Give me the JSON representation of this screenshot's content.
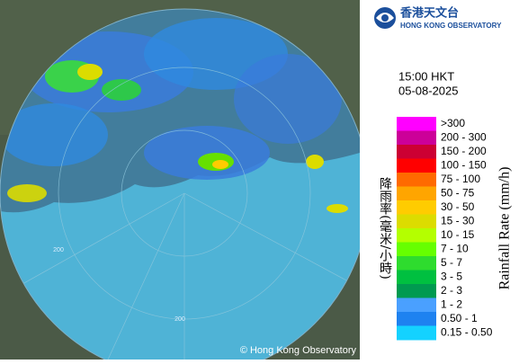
{
  "logo": {
    "chinese": "香港天文台",
    "english": "HONG KONG OBSERVATORY"
  },
  "time": "15:00 HKT",
  "date": "05-08-2025",
  "legend": {
    "title": "Rainfall Rate (mm/h)",
    "title_zh": "降雨率(毫米/小時)",
    "items": [
      {
        "label": ">300",
        "color": "#ff00ff"
      },
      {
        "label": "200 - 300",
        "color": "#cc0099"
      },
      {
        "label": "150 - 200",
        "color": "#cc0033"
      },
      {
        "label": "100 - 150",
        "color": "#ff0000"
      },
      {
        "label": "75 - 100",
        "color": "#ff6a00"
      },
      {
        "label": "50 - 75",
        "color": "#ffa500"
      },
      {
        "label": "30 - 50",
        "color": "#ffcc00"
      },
      {
        "label": "15 - 30",
        "color": "#dcdc00"
      },
      {
        "label": "10 - 15",
        "color": "#b4ff00"
      },
      {
        "label": "7 - 10",
        "color": "#66ff00"
      },
      {
        "label": "5 - 7",
        "color": "#2edc2e"
      },
      {
        "label": "3 - 5",
        "color": "#00c040"
      },
      {
        "label": "2 - 3",
        "color": "#009a50"
      },
      {
        "label": "1 - 2",
        "color": "#4aa0ff"
      },
      {
        "label": "0.50 - 1",
        "color": "#1e82f0"
      },
      {
        "label": "0.15 - 0.50",
        "color": "#14d2ff"
      }
    ]
  },
  "range_labels": [
    "200",
    "200"
  ],
  "copyright": "© Hong Kong Observatory"
}
